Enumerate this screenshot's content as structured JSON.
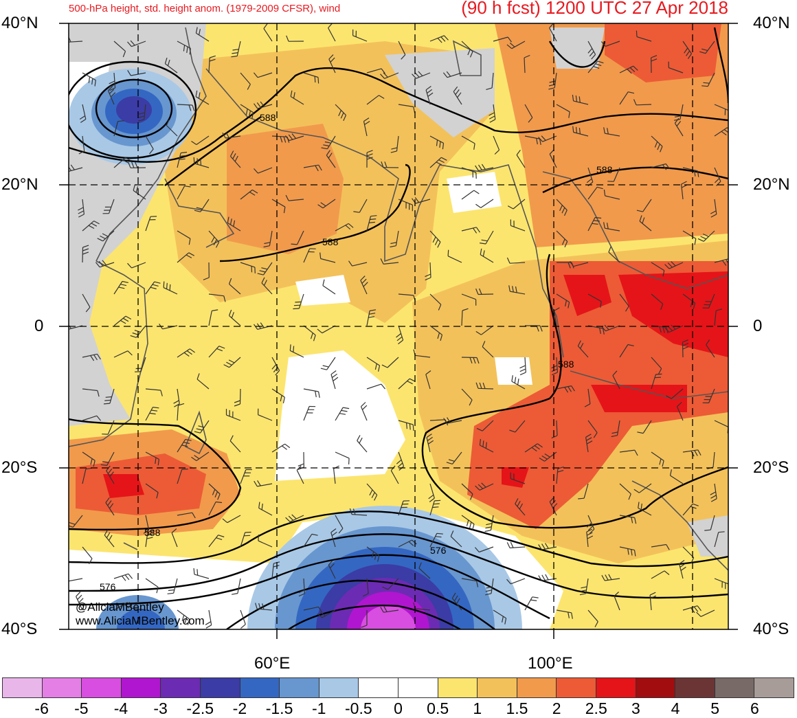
{
  "header": {
    "left_title": "500-hPa height, std. height anom. (1979-2009 CFSR), wind",
    "right_title": "(90 h fcst) 1200 UTC 27 Apr 2018"
  },
  "axes": {
    "lat_left": [
      "40°N",
      "20°N",
      "0",
      "20°S",
      "40°S"
    ],
    "lat_right": [
      "40°N",
      "20°N",
      "0",
      "20°S",
      "40°S"
    ],
    "lon_labels": [
      "60°E",
      "100°E"
    ]
  },
  "contour_labels": [
    "588",
    "588",
    "588",
    "588",
    "588",
    "576",
    "576"
  ],
  "credit": {
    "handle": "@AliciaMBentley",
    "site": "www.AliciaMBentley.com"
  },
  "colorbar": {
    "labels": [
      "-6",
      "-5",
      "-4",
      "-3",
      "-2.5",
      "-2",
      "-1.5",
      "-1",
      "-0.5",
      "0",
      "0.5",
      "1",
      "1.5",
      "2",
      "2.5",
      "3",
      "4",
      "5",
      "6"
    ],
    "colors": [
      "#e9b6ea",
      "#e47fe6",
      "#d84ee0",
      "#b016cf",
      "#6c2bb3",
      "#3b3ca5",
      "#3467c2",
      "#6896cf",
      "#a8c8e6",
      "#ffffff",
      "#ffffff",
      "#fce56e",
      "#f3c15a",
      "#f19a4c",
      "#ec5b36",
      "#e51418",
      "#a20d0f",
      "#6b3536",
      "#786a66",
      "#a89c98"
    ]
  }
}
